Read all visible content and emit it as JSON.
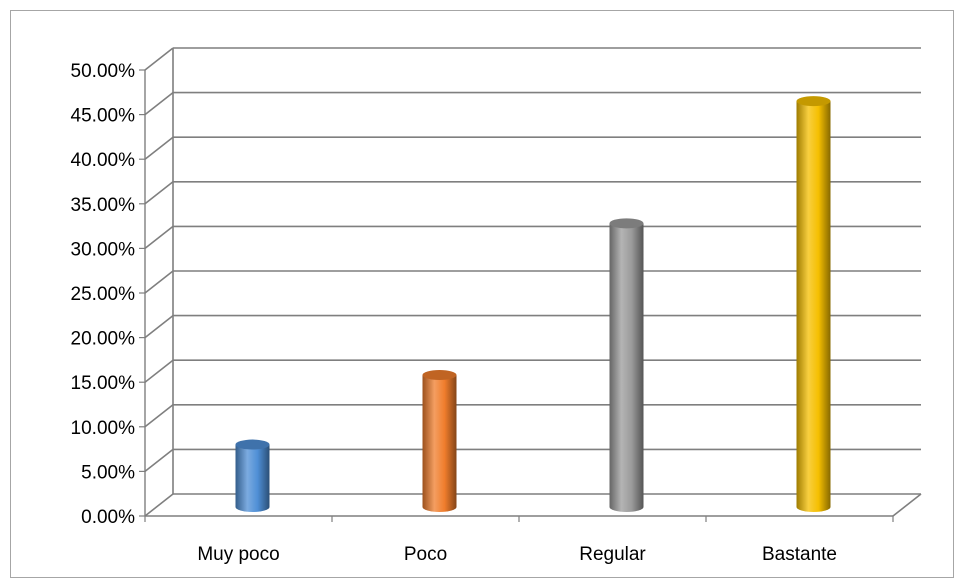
{
  "chart_data": {
    "type": "bar",
    "style": "3d-cylinder",
    "categories": [
      "Muy poco",
      "Poco",
      "Regular",
      "Bastante"
    ],
    "values": [
      0.07,
      0.148,
      0.318,
      0.455
    ],
    "colors": [
      "#4f8fd6",
      "#f07d2c",
      "#9b9b9b",
      "#f5bf00"
    ],
    "ylim": [
      0,
      0.5
    ],
    "yticks": [
      "0.00%",
      "5.00%",
      "10.00%",
      "15.00%",
      "20.00%",
      "25.00%",
      "30.00%",
      "35.00%",
      "40.00%",
      "45.00%",
      "50.00%"
    ],
    "grid": true,
    "legend": "none"
  }
}
